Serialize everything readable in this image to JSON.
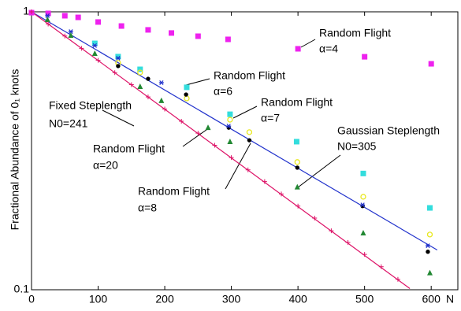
{
  "chart_data": {
    "type": "scatter",
    "ylabel": "Fractional Abundance of 0₁ knots",
    "xlabel": "N",
    "xlim": [
      0,
      640
    ],
    "ylim": [
      0.1,
      1
    ],
    "log_y": true,
    "xticks": [
      0,
      100,
      200,
      300,
      400,
      500,
      600
    ],
    "yticks": [
      0.1,
      1
    ],
    "series": [
      {
        "marker": "square",
        "color": "#ee22ee",
        "x": [
          0,
          25,
          50,
          70,
          100,
          135,
          175,
          210,
          250,
          295,
          400,
          500,
          600
        ],
        "values": [
          0.993,
          0.987,
          0.968,
          0.955,
          0.919,
          0.889,
          0.861,
          0.839,
          0.817,
          0.796,
          0.736,
          0.689,
          0.65
        ]
      },
      {
        "marker": "square",
        "color": "#33dddd",
        "x": [
          95,
          130,
          163,
          233,
          298,
          398,
          498,
          598
        ],
        "values": [
          0.77,
          0.69,
          0.621,
          0.535,
          0.428,
          0.341,
          0.262,
          0.197
        ]
      },
      {
        "marker": "circle",
        "color": "#e8e820",
        "x": [
          130,
          163,
          233,
          298,
          327,
          399,
          498,
          598
        ],
        "values": [
          0.655,
          0.605,
          0.488,
          0.409,
          0.369,
          0.288,
          0.216,
          0.158
        ]
      },
      {
        "marker": "dot",
        "color": "#000000",
        "x": [
          130,
          175,
          232,
          296,
          327,
          399,
          497,
          595
        ],
        "values": [
          0.638,
          0.574,
          0.504,
          0.383,
          0.345,
          0.275,
          0.2,
          0.137
        ]
      },
      {
        "marker": "triangle",
        "color": "#228833",
        "x": [
          24,
          59,
          95,
          163,
          195,
          265,
          298,
          399,
          498,
          598
        ],
        "values": [
          0.937,
          0.822,
          0.708,
          0.538,
          0.479,
          0.383,
          0.341,
          0.234,
          0.16,
          0.115
        ]
      },
      {
        "marker": "asterisk",
        "color": "#2233cc",
        "x": [
          24,
          59,
          95,
          130,
          195,
          296,
          497,
          595
        ],
        "values": [
          0.968,
          0.849,
          0.756,
          0.681,
          0.556,
          0.388,
          0.202,
          0.144
        ]
      },
      {
        "marker": "plus",
        "color": "#dd1166",
        "x": [
          0,
          25,
          50,
          75,
          100,
          125,
          150,
          175,
          200,
          225,
          250,
          275,
          300,
          325,
          350,
          375,
          400,
          425,
          450,
          475,
          500,
          525,
          550
        ],
        "values": [
          1,
          0.904,
          0.818,
          0.739,
          0.669,
          0.604,
          0.547,
          0.494,
          0.447,
          0.404,
          0.366,
          0.331,
          0.299,
          0.27,
          0.245,
          0.221,
          0.2,
          0.181,
          0.163,
          0.148,
          0.134,
          0.121,
          0.109
        ]
      }
    ],
    "fits": [
      {
        "color": "#2233cc",
        "x": [
          0,
          609
        ],
        "values": [
          1,
          0.139
        ]
      },
      {
        "color": "#dd1166",
        "x": [
          0,
          568
        ],
        "values": [
          1,
          0.101
        ]
      }
    ],
    "annotations": [
      [
        "Random Flight",
        "α=4"
      ],
      [
        "Random Flight",
        "α=6"
      ],
      [
        "Random Flight",
        "α=7"
      ],
      [
        "Gaussian Steplength",
        "N0=305"
      ],
      [
        "Fixed Steplength",
        "N0=241"
      ],
      [
        "Random Flight",
        "α=20"
      ],
      [
        "Random Flight",
        "α=8"
      ]
    ]
  }
}
